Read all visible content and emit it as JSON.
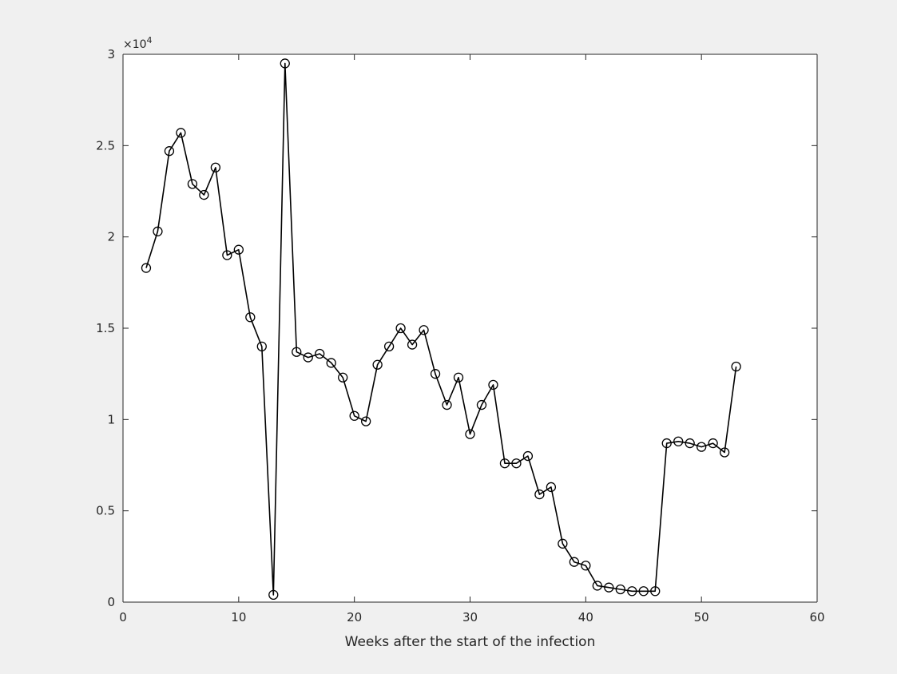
{
  "chart_data": {
    "type": "line",
    "title": "",
    "xlabel": "Weeks after the start of the infection",
    "ylabel": "",
    "xlim": [
      0,
      60
    ],
    "ylim": [
      0,
      30000
    ],
    "x_ticks": [
      0,
      10,
      20,
      30,
      40,
      50,
      60
    ],
    "x_tick_labels": [
      "0",
      "10",
      "20",
      "30",
      "40",
      "50",
      "60"
    ],
    "y_ticks": [
      0,
      5000,
      10000,
      15000,
      20000,
      25000,
      30000
    ],
    "y_tick_labels": [
      "0",
      "0.5",
      "1",
      "1.5",
      "2",
      "2.5",
      "3"
    ],
    "y_exponent_prefix": "×10",
    "y_exponent_power": "4",
    "grid": false,
    "legend": "none",
    "marker": "circle",
    "line_color": "#000000",
    "axes_background": "#ffffff",
    "figure_background": "#f0f0f0",
    "series": [
      {
        "x": [
          2,
          3,
          4,
          5,
          6,
          7,
          8,
          9,
          10,
          11,
          12,
          13,
          14,
          15,
          16,
          17,
          18,
          19,
          20,
          21,
          22,
          23,
          24,
          25,
          26,
          27,
          28,
          29,
          30,
          31,
          32,
          33,
          34,
          35,
          36,
          37,
          38,
          39,
          40,
          41,
          42,
          43,
          44,
          45,
          46,
          47,
          48,
          49,
          50,
          51,
          52,
          53
        ],
        "values": [
          18300,
          20300,
          24700,
          25700,
          22900,
          22300,
          23800,
          19000,
          19300,
          15600,
          14000,
          400,
          29500,
          13700,
          13400,
          13600,
          13100,
          12300,
          10200,
          9900,
          13000,
          14000,
          15000,
          14100,
          14900,
          12500,
          10800,
          12300,
          9200,
          10800,
          11900,
          7600,
          7600,
          8000,
          5900,
          6300,
          3200,
          2200,
          2000,
          900,
          800,
          700,
          600,
          600,
          600,
          8700,
          8800,
          8700,
          8500,
          8700,
          8200,
          12900
        ]
      }
    ]
  }
}
